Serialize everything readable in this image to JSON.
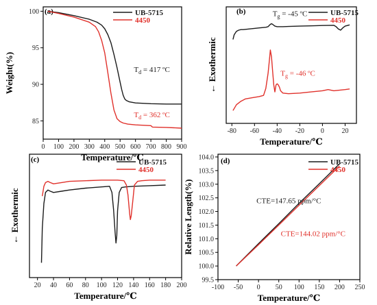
{
  "colors": {
    "black": "#1a1a1a",
    "red": "#e0302a"
  },
  "chart_data": [
    {
      "id": "a",
      "panel_label": "(a)",
      "type": "line",
      "xlabel": "Temperature/℃",
      "ylabel": "Weight(%)",
      "xlim": [
        0,
        900
      ],
      "ylim": [
        82.5,
        100.6
      ],
      "xticks": [
        0,
        100,
        200,
        300,
        400,
        500,
        600,
        700,
        800,
        900
      ],
      "yticks": [
        85,
        90,
        95,
        100
      ],
      "series": [
        {
          "name": "UB-5715",
          "color": "black",
          "x": [
            30,
            100,
            200,
            300,
            350,
            380,
            400,
            420,
            440,
            460,
            480,
            500,
            510,
            520,
            530,
            540,
            560,
            600,
            700,
            800,
            900
          ],
          "y": [
            100,
            99.8,
            99.4,
            98.9,
            98.5,
            98.1,
            97.6,
            96.8,
            95.7,
            94.1,
            92.3,
            90.3,
            89.3,
            88.5,
            88.0,
            87.8,
            87.6,
            87.45,
            87.35,
            87.3,
            87.3
          ]
        },
        {
          "name": "4450",
          "color": "red",
          "x": [
            30,
            100,
            200,
            300,
            340,
            360,
            380,
            400,
            420,
            440,
            460,
            480,
            500,
            520,
            550,
            600,
            700,
            710,
            800,
            900
          ],
          "y": [
            100,
            99.7,
            99.2,
            98.5,
            97.9,
            97.2,
            96.0,
            94.3,
            91.6,
            88.8,
            86.5,
            85.3,
            84.9,
            84.7,
            84.55,
            84.45,
            84.35,
            84.15,
            84.1,
            84.0
          ]
        }
      ],
      "annotations": [
        {
          "text": "T",
          "sub": "d",
          "rest": " = 417 ºC",
          "color": "black",
          "x": 590,
          "y": 91.7
        },
        {
          "text": "T",
          "sub": "d",
          "rest": " = 362 ºC",
          "color": "red",
          "x": 590,
          "y": 85.5
        }
      ]
    },
    {
      "id": "b",
      "panel_label": "(b)",
      "type": "line",
      "xlabel": "Temperature/℃",
      "ylabel": "Exothermic",
      "xlim": [
        -85,
        30
      ],
      "ylim": [
        0,
        10
      ],
      "xticks": [
        -80,
        -60,
        -40,
        -20,
        0,
        20
      ],
      "yticks": [],
      "series": [
        {
          "name": "UB-5715",
          "color": "black",
          "x": [
            -79,
            -78,
            -76,
            -74,
            -72,
            -70,
            -65,
            -60,
            -55,
            -50,
            -48,
            -46,
            -45,
            -44,
            -42,
            -40,
            -35,
            -30,
            -20,
            -10,
            0,
            10,
            12,
            14,
            16,
            18,
            20,
            24
          ],
          "y": [
            7.2,
            7.6,
            7.9,
            8.0,
            8.05,
            8.05,
            8.1,
            8.15,
            8.2,
            8.25,
            8.3,
            8.5,
            8.55,
            8.5,
            8.35,
            8.3,
            8.3,
            8.32,
            8.35,
            8.37,
            8.4,
            8.42,
            8.3,
            8.1,
            8.0,
            8.2,
            8.35,
            8.45
          ]
        },
        {
          "name": "4450",
          "color": "red",
          "x": [
            -79,
            -76,
            -72,
            -68,
            -62,
            -56,
            -52,
            -50,
            -48,
            -47,
            -46,
            -45,
            -44,
            -43,
            -42,
            -41,
            -40,
            -39,
            -38,
            -37,
            -35,
            -30,
            -20,
            -10,
            0,
            5,
            10,
            20,
            24
          ],
          "y": [
            1.1,
            1.6,
            1.9,
            2.1,
            2.2,
            2.3,
            2.4,
            3.0,
            4.3,
            5.3,
            6.3,
            5.7,
            4.5,
            3.3,
            2.7,
            3.3,
            3.4,
            3.3,
            3.1,
            2.8,
            2.6,
            2.55,
            2.6,
            2.7,
            2.8,
            2.9,
            2.8,
            2.9,
            2.95
          ]
        }
      ],
      "annotations": [
        {
          "text": "T",
          "sub": "g",
          "rest": " = -45 ºC",
          "color": "black",
          "x": -44,
          "y": 9.2
        },
        {
          "text": "T",
          "sub": "g",
          "rest": " = -46 ºC",
          "color": "red",
          "x": -37,
          "y": 4.1
        }
      ]
    },
    {
      "id": "c",
      "panel_label": "(c)",
      "type": "line",
      "xlabel": "Temperature/℃",
      "ylabel": "Exothermic",
      "xlim": [
        10,
        200
      ],
      "ylim": [
        0,
        10
      ],
      "xticks": [
        20,
        40,
        60,
        80,
        100,
        120,
        140,
        160,
        180,
        200
      ],
      "yticks": [],
      "series": [
        {
          "name": "UB-5715",
          "color": "black",
          "x": [
            25,
            26,
            28,
            30,
            33,
            36,
            40,
            50,
            60,
            80,
            100,
            110,
            113,
            115,
            117,
            118,
            119,
            120,
            122,
            125,
            130,
            140,
            160,
            180
          ],
          "y": [
            1.2,
            4.0,
            6.0,
            6.9,
            7.1,
            7.0,
            6.9,
            7.0,
            7.1,
            7.25,
            7.35,
            7.4,
            6.9,
            5.5,
            3.6,
            2.8,
            3.4,
            5.4,
            6.9,
            7.3,
            7.35,
            7.4,
            7.45,
            7.5
          ]
        },
        {
          "name": "4450",
          "color": "red",
          "x": [
            26,
            28,
            30,
            33,
            36,
            40,
            50,
            60,
            80,
            100,
            120,
            128,
            131,
            133,
            135,
            136,
            137,
            139,
            141,
            145,
            150,
            160,
            180
          ],
          "y": [
            6.6,
            7.4,
            7.7,
            7.8,
            7.7,
            7.6,
            7.7,
            7.8,
            7.85,
            7.9,
            7.9,
            7.85,
            7.5,
            6.7,
            5.2,
            4.7,
            5.0,
            6.2,
            7.5,
            7.8,
            7.85,
            7.9,
            7.9
          ]
        }
      ],
      "annotations": []
    },
    {
      "id": "d",
      "panel_label": "(d)",
      "type": "line",
      "xlabel": "Temperature/℃",
      "ylabel": "Relative Length(%)",
      "xlim": [
        -100,
        250
      ],
      "ylim": [
        99.5,
        104.1
      ],
      "xticks": [
        -100,
        -50,
        0,
        50,
        100,
        150,
        200,
        250
      ],
      "yticks": [
        99.5,
        100.0,
        100.5,
        101.0,
        101.5,
        102.0,
        102.5,
        103.0,
        103.5,
        104.0
      ],
      "series": [
        {
          "name": "UB-5715",
          "color": "black",
          "x": [
            -55,
            0,
            50,
            100,
            150,
            200
          ],
          "y": [
            100.0,
            100.82,
            101.55,
            102.3,
            103.02,
            103.75
          ]
        },
        {
          "name": "4450",
          "color": "red",
          "x": [
            -55,
            0,
            50,
            100,
            150,
            200
          ],
          "y": [
            100.0,
            100.78,
            101.5,
            102.23,
            102.95,
            103.67
          ]
        }
      ],
      "annotations": [
        {
          "text": "CTE=147.65 ppm/°C",
          "color": "black",
          "x": -5,
          "y": 102.3
        },
        {
          "text": "CTE=144.02 ppm/°C",
          "color": "red",
          "x": 55,
          "y": 101.1
        }
      ]
    }
  ]
}
